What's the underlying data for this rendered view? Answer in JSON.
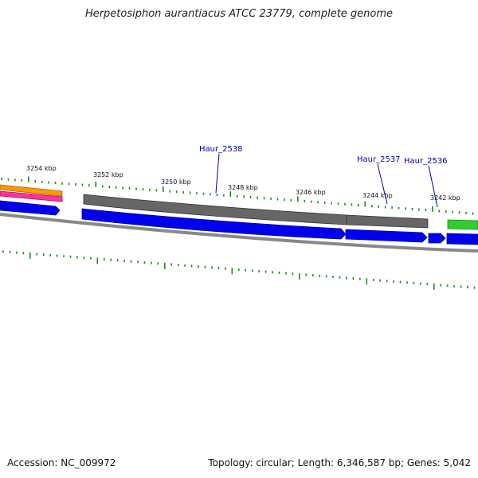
{
  "title": "Herpetosiphon aurantiacus ATCC 23779, complete genome",
  "footer": {
    "accession": "Accession: NC_009972",
    "summary": "Topology: circular; Length: 6,346,587 bp; Genes: 5,042"
  },
  "scale_labels": [
    "3254 kbp",
    "3252 kbp",
    "3250 kbp",
    "3248 kbp",
    "3246 kbp",
    "3244 kbp",
    "3242 kbp"
  ],
  "gene_labels": [
    "Haur_2538",
    "Haur_2537",
    "Haur_2536"
  ],
  "colors": {
    "orange": "#ff9900",
    "pink": "#ff3399",
    "blue": "#0000ee",
    "gray": "#666666",
    "green": "#33cc33",
    "tick": "#228822",
    "label": "#000099"
  }
}
